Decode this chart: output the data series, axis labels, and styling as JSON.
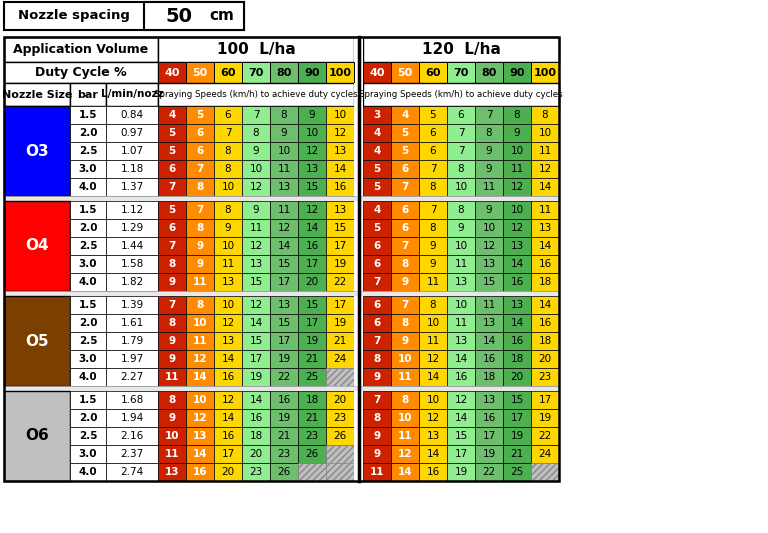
{
  "nozzle_spacing": "50",
  "nozzle_groups": [
    "O3",
    "O4",
    "O5",
    "O6"
  ],
  "group_colors": [
    "#0000FF",
    "#FF0000",
    "#7B3F00",
    "#C0C0C0"
  ],
  "group_text_colors": [
    "#FFFFFF",
    "#FFFFFF",
    "#FFFFFF",
    "#000000"
  ],
  "bars": [
    1.5,
    2.0,
    2.5,
    3.0,
    4.0
  ],
  "lmin_per_nozz": {
    "O3": [
      0.84,
      0.97,
      1.07,
      1.18,
      1.37
    ],
    "O4": [
      1.12,
      1.29,
      1.44,
      1.58,
      1.82
    ],
    "O5": [
      1.39,
      1.61,
      1.79,
      1.97,
      2.27
    ],
    "O6": [
      1.68,
      1.94,
      2.16,
      2.37,
      2.74
    ]
  },
  "data_100": {
    "O3": [
      [
        4,
        5,
        6,
        7,
        8,
        9,
        10
      ],
      [
        5,
        6,
        7,
        8,
        9,
        10,
        12
      ],
      [
        5,
        6,
        8,
        9,
        10,
        12,
        13
      ],
      [
        6,
        7,
        8,
        10,
        11,
        13,
        14
      ],
      [
        7,
        8,
        10,
        12,
        13,
        15,
        16
      ]
    ],
    "O4": [
      [
        5,
        7,
        8,
        9,
        11,
        12,
        13
      ],
      [
        6,
        8,
        9,
        11,
        12,
        14,
        15
      ],
      [
        7,
        9,
        10,
        12,
        14,
        16,
        17
      ],
      [
        8,
        9,
        11,
        13,
        15,
        17,
        19
      ],
      [
        9,
        11,
        13,
        15,
        17,
        20,
        22
      ]
    ],
    "O5": [
      [
        7,
        8,
        10,
        12,
        13,
        15,
        17
      ],
      [
        8,
        10,
        12,
        14,
        15,
        17,
        19
      ],
      [
        9,
        11,
        13,
        15,
        17,
        19,
        21
      ],
      [
        9,
        12,
        14,
        17,
        19,
        21,
        24
      ],
      [
        11,
        14,
        16,
        19,
        22,
        25,
        null
      ]
    ],
    "O6": [
      [
        8,
        10,
        12,
        14,
        16,
        18,
        20
      ],
      [
        9,
        12,
        14,
        16,
        19,
        21,
        23
      ],
      [
        10,
        13,
        16,
        18,
        21,
        23,
        26
      ],
      [
        11,
        14,
        17,
        20,
        23,
        26,
        null
      ],
      [
        13,
        16,
        20,
        23,
        26,
        null,
        null
      ]
    ]
  },
  "data_120": {
    "O3": [
      [
        3,
        4,
        5,
        6,
        7,
        8,
        8
      ],
      [
        4,
        5,
        6,
        7,
        8,
        9,
        10
      ],
      [
        4,
        5,
        6,
        7,
        9,
        10,
        11
      ],
      [
        5,
        6,
        7,
        8,
        9,
        11,
        12
      ],
      [
        5,
        7,
        8,
        10,
        11,
        12,
        14
      ]
    ],
    "O4": [
      [
        4,
        6,
        7,
        8,
        9,
        10,
        11
      ],
      [
        5,
        6,
        8,
        9,
        10,
        12,
        13
      ],
      [
        6,
        7,
        9,
        10,
        12,
        13,
        14
      ],
      [
        6,
        8,
        9,
        11,
        13,
        14,
        16
      ],
      [
        7,
        9,
        11,
        13,
        15,
        16,
        18
      ]
    ],
    "O5": [
      [
        6,
        7,
        8,
        10,
        11,
        13,
        14
      ],
      [
        6,
        8,
        10,
        11,
        13,
        14,
        16
      ],
      [
        7,
        9,
        11,
        13,
        14,
        16,
        18
      ],
      [
        8,
        10,
        12,
        14,
        16,
        18,
        20
      ],
      [
        9,
        11,
        14,
        16,
        18,
        20,
        23
      ]
    ],
    "O6": [
      [
        7,
        8,
        10,
        12,
        13,
        15,
        17
      ],
      [
        8,
        10,
        12,
        14,
        16,
        17,
        19
      ],
      [
        9,
        11,
        13,
        15,
        17,
        19,
        22
      ],
      [
        9,
        12,
        14,
        17,
        19,
        21,
        24
      ],
      [
        11,
        14,
        16,
        19,
        22,
        25,
        null
      ]
    ]
  },
  "duty_col_colors": [
    "#CC2200",
    "#FF8C00",
    "#FFD700",
    "#90EE90",
    "#6DBF6D",
    "#4CAF50",
    "#FFD700"
  ],
  "duty_text_white": [
    true,
    true,
    false,
    false,
    false,
    false,
    false
  ]
}
